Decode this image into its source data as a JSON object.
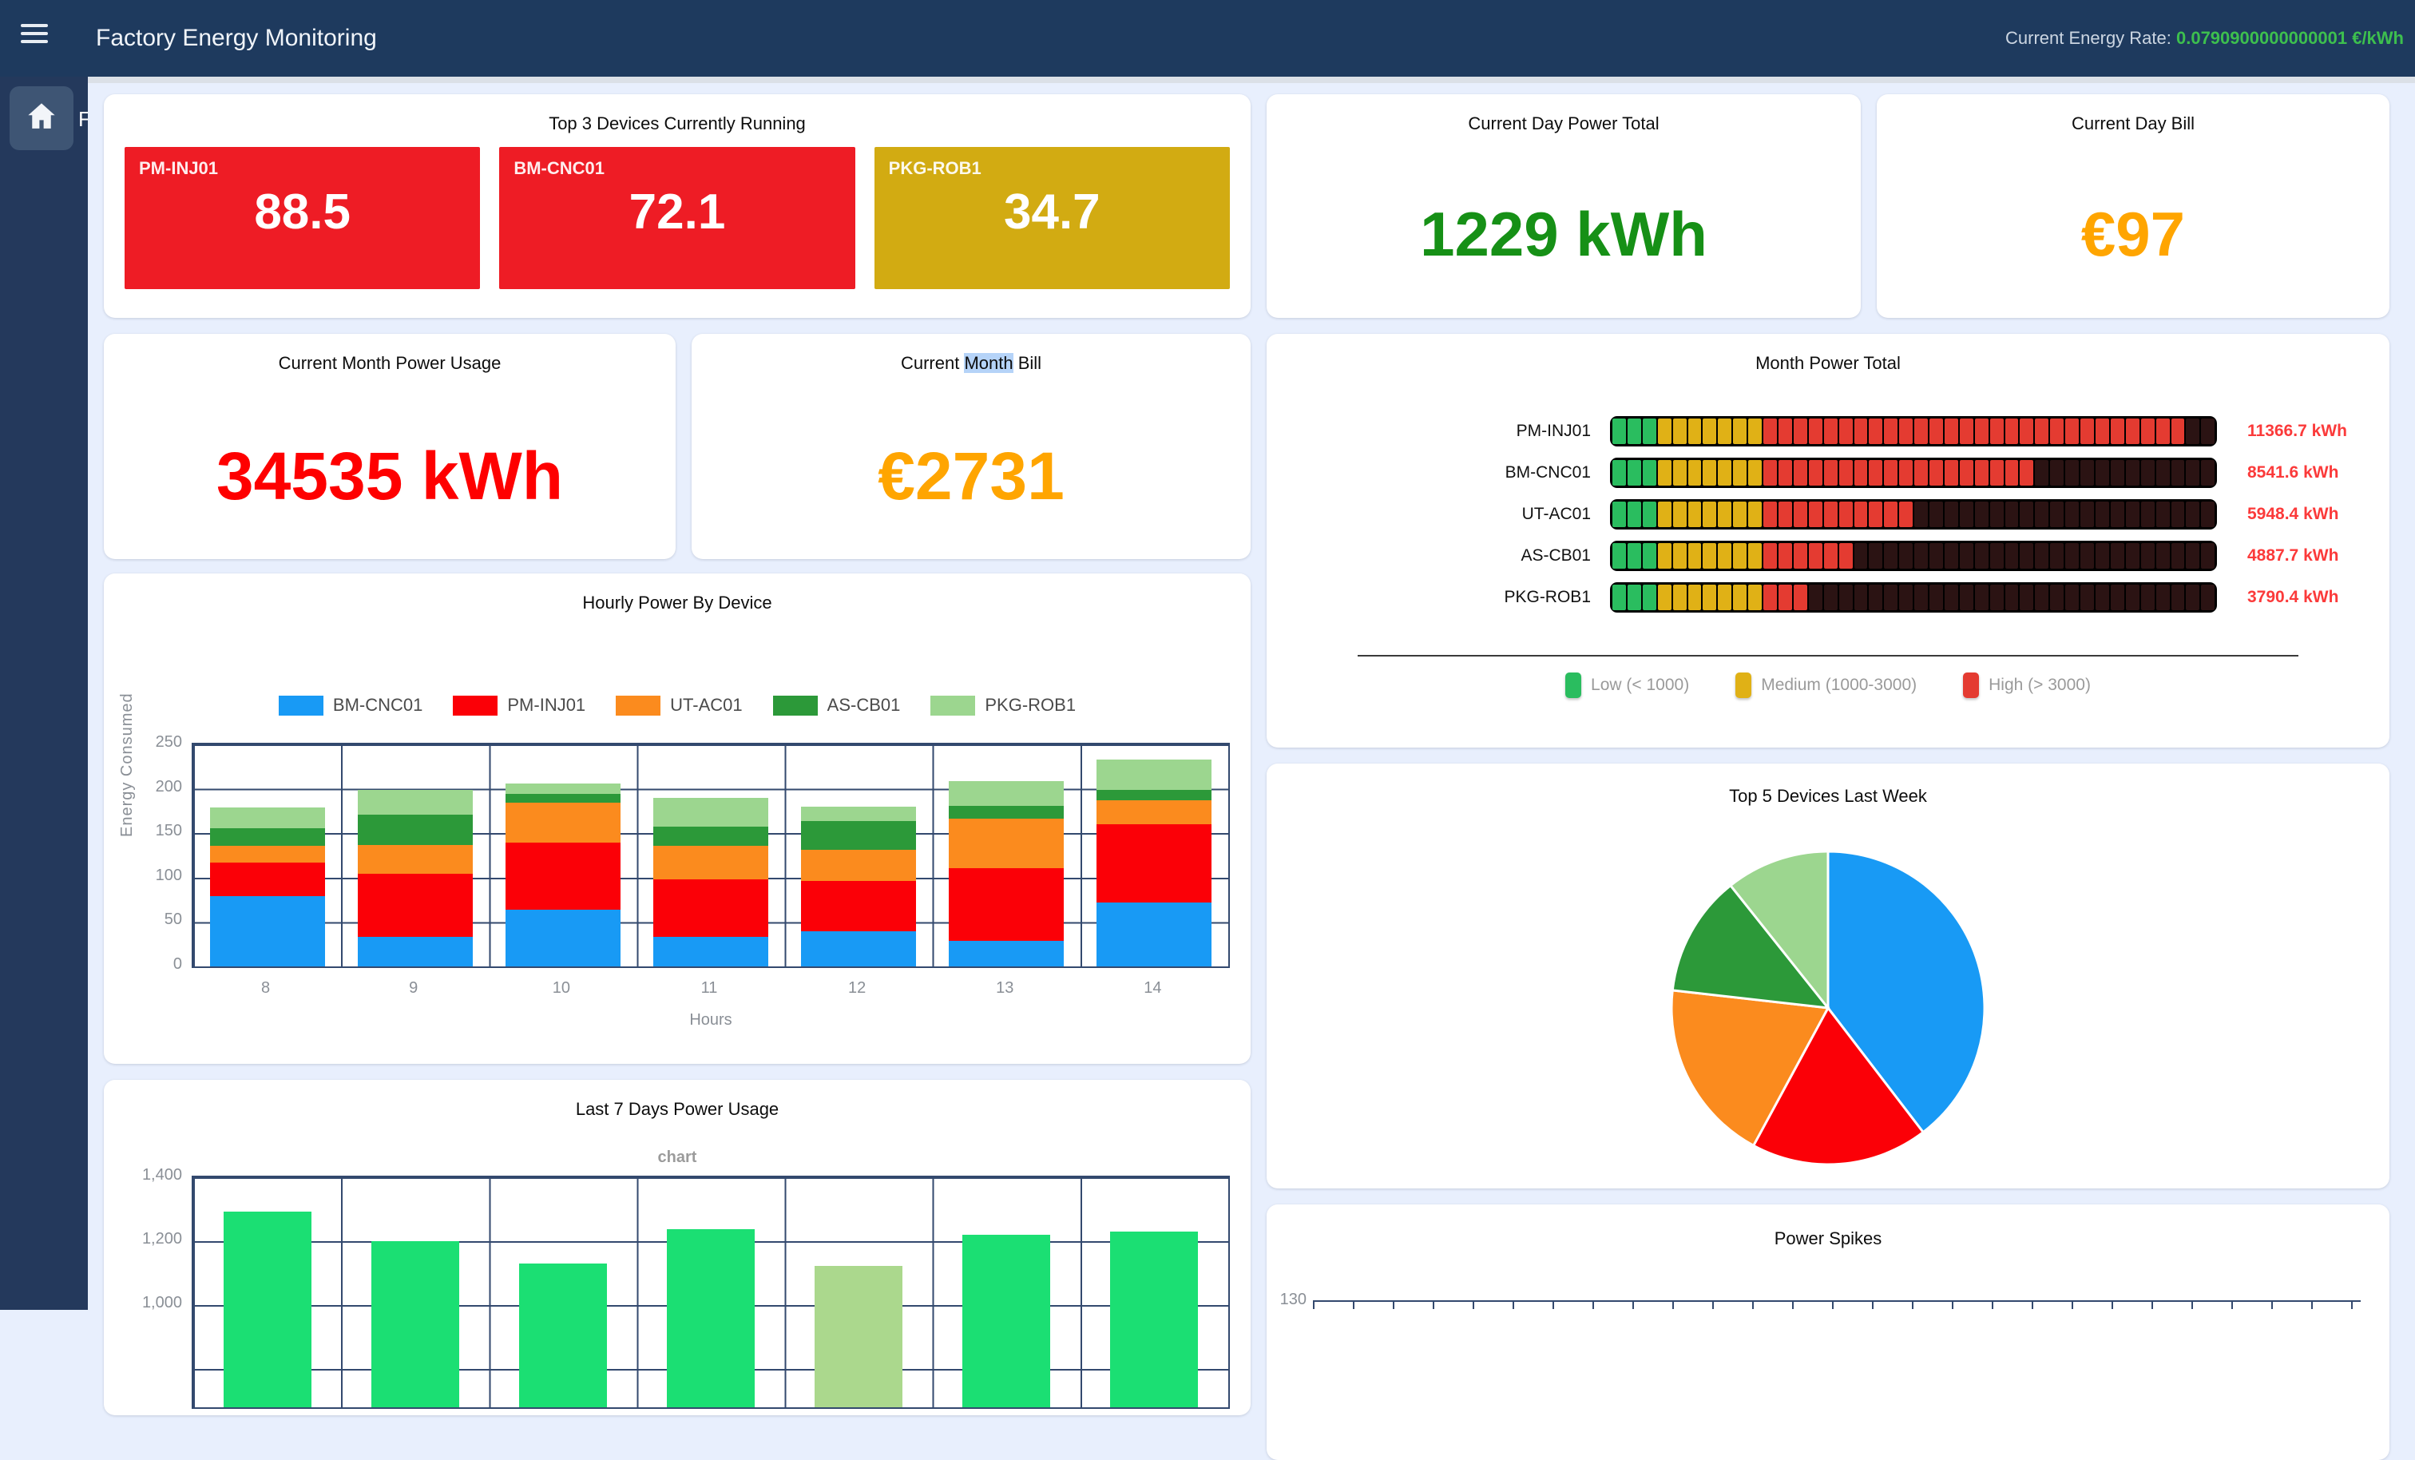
{
  "topbar": {
    "title": "Factory Energy Monitoring",
    "rate_label": "Current Energy Rate: ",
    "rate_value": "0.0790900000000001",
    "rate_unit": " €/kWh"
  },
  "sidebar": {
    "partial_label": "F"
  },
  "cards": {
    "top3": {
      "title": "Top 3 Devices Currently Running",
      "tiles": [
        {
          "device": "PM-INJ01",
          "value": "88.5",
          "color": "#ee1c25"
        },
        {
          "device": "BM-CNC01",
          "value": "72.1",
          "color": "#ee1c25"
        },
        {
          "device": "PKG-ROB1",
          "value": "34.7",
          "color": "#d2ab12"
        }
      ]
    },
    "day_total": {
      "title": "Current Day Power Total",
      "value": "1229 kWh",
      "color": "#169016"
    },
    "day_bill": {
      "title": "Current Day Bill",
      "value": "€97",
      "color": "#ffa500"
    },
    "month_usage": {
      "title": "Current Month Power Usage",
      "value": "34535 kWh",
      "color": "#fe0000"
    },
    "month_bill": {
      "title_prefix": "Current ",
      "title_selected": "Month",
      "title_suffix": " Bill",
      "value": "€2731",
      "color": "#ffa500"
    },
    "month_total": {
      "title": "Month Power Total"
    },
    "last7": {
      "title": "Last 7 Days Power Usage",
      "subtitle": "chart"
    },
    "pie": {
      "title": "Top 5 Devices Last Week"
    },
    "spikes": {
      "title": "Power Spikes"
    }
  },
  "chart_data": [
    {
      "id": "month_total",
      "type": "bar",
      "orientation": "horizontal",
      "title": "Month Power Total",
      "categories": [
        "PM-INJ01",
        "BM-CNC01",
        "UT-AC01",
        "AS-CB01",
        "PKG-ROB1"
      ],
      "values": [
        11366.7,
        8541.6,
        5948.4,
        4887.7,
        3790.4
      ],
      "value_labels": [
        "11366.7 kWh",
        "8541.6 kWh",
        "5948.4 kWh",
        "4887.7 kWh",
        "3790.4 kWh"
      ],
      "unit": "kWh",
      "xlim": [
        0,
        12000
      ],
      "segments": 40,
      "segment_kwh": 300,
      "zone_colors": {
        "low": "#2abd5f",
        "medium": "#e0b116",
        "high": "#e43b31",
        "unlit": "#2b1313"
      },
      "zone_limits": {
        "low_max": 1000,
        "medium_max": 3000
      },
      "legend": [
        {
          "label": "Low (< 1000)",
          "color": "#2abd5f"
        },
        {
          "label": "Medium (1000-3000)",
          "color": "#e0b116"
        },
        {
          "label": "High (> 3000)",
          "color": "#e43b31"
        }
      ]
    },
    {
      "id": "hourly",
      "type": "bar",
      "stacked": true,
      "title": "Hourly Power By Device",
      "categories": [
        "8",
        "9",
        "10",
        "11",
        "12",
        "13",
        "14"
      ],
      "xlabel": "Hours",
      "ylabel": "Energy Consumed",
      "ylim": [
        0,
        250
      ],
      "yticks": [
        "250",
        "200",
        "150",
        "100",
        "50",
        "0"
      ],
      "grid": true,
      "legend_position": "top",
      "series": [
        {
          "name": "BM-CNC01",
          "color": "#189af5",
          "values": [
            79,
            33,
            64,
            33,
            40,
            29,
            72
          ]
        },
        {
          "name": "PM-INJ01",
          "color": "#fb0007",
          "values": [
            38,
            71,
            75,
            65,
            56,
            82,
            88
          ]
        },
        {
          "name": "UT-AC01",
          "color": "#fb8b1e",
          "values": [
            19,
            33,
            45,
            38,
            35,
            55,
            27
          ]
        },
        {
          "name": "AS-CB01",
          "color": "#2c9939",
          "values": [
            20,
            34,
            10,
            21,
            33,
            15,
            12
          ]
        },
        {
          "name": "PKG-ROB1",
          "color": "#9cd68f",
          "values": [
            23,
            28,
            12,
            33,
            16,
            28,
            34
          ]
        }
      ]
    },
    {
      "id": "last7",
      "type": "bar",
      "title": "Last 7 Days Power Usage",
      "subtitle": "chart",
      "values": [
        1292,
        1200,
        1129,
        1237,
        1122,
        1221,
        1229
      ],
      "ylim_visible": [
        1000,
        1400
      ],
      "yticks": [
        "1,400",
        "1,200",
        "1,000"
      ],
      "bar_color": "#1bdf73",
      "highlight_index": 4,
      "highlight_color": "#abd88d",
      "note": "bottom of chart clipped by viewport"
    },
    {
      "id": "pie",
      "type": "pie",
      "title": "Top 5 Devices Last Week",
      "labels": [
        "BM-CNC01",
        "PM-INJ01",
        "UT-AC01",
        "AS-CB01",
        "PKG-ROB1"
      ],
      "values_pct": [
        39.6,
        18.3,
        18.9,
        12.5,
        10.7
      ],
      "colors": [
        "#189af5",
        "#fb0007",
        "#fb8b1e",
        "#2c9939",
        "#9cd68f"
      ]
    },
    {
      "id": "spikes",
      "type": "line",
      "title": "Power Spikes",
      "ytick": "130",
      "note": "chart clipped by viewport bottom"
    }
  ]
}
